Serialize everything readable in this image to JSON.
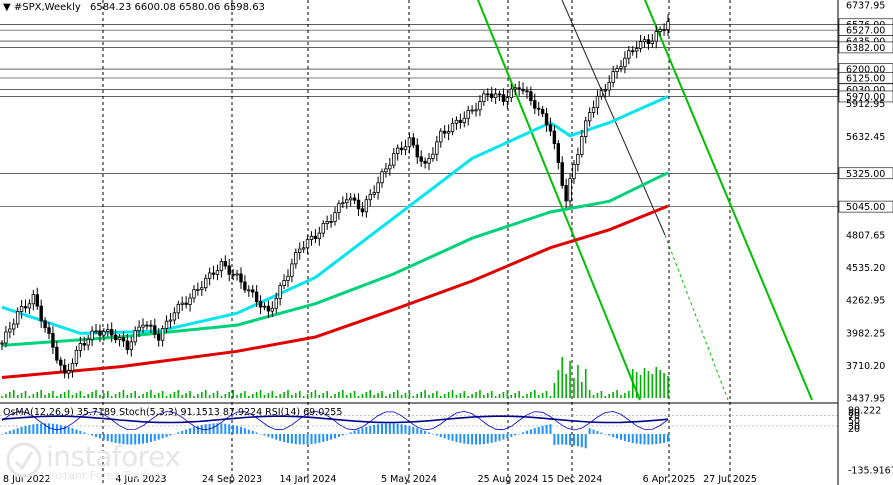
{
  "header": {
    "symbol": "#SPX,Weekly",
    "ohlc": "6584.23 6600.08 6580.06 6598.63"
  },
  "indicator_header": "OsMA(12,26,9) 35.7189  Stoch(5,3,3) 91.1513 87.9224  RSI(14) 69.0255",
  "logo": {
    "name": "instaforex",
    "tagline": "Instant Forex Trading"
  },
  "colors": {
    "candle": "#000000",
    "ma_fast": "#00e5ee",
    "ma_mid": "#00d27a",
    "ma_slow": "#e00000",
    "channel": "#00c000",
    "channel_dark": "#202020",
    "hline": "#000000",
    "osma": "#1e90ff",
    "stoch_main": "#0000cc",
    "stoch_sig": "#cc0000",
    "rsi": "#00008b",
    "grid_v": "#000000"
  },
  "chart_data": {
    "type": "candlestick",
    "instrument": "#SPX",
    "timeframe": "Weekly",
    "y_ticks": [
      6737.95,
      6576.0,
      6527.0,
      6435.0,
      6382.0,
      6200.0,
      6125.0,
      6030.0,
      5970.0,
      5912.95,
      5632.45,
      5325.0,
      5045.0,
      4807.65,
      4535.2,
      4262.95,
      3982.25,
      3710.2,
      3437.95
    ],
    "ylim": [
      3437.95,
      6737.95
    ],
    "x_ticks": [
      "8 Jul 2022",
      "4 Jun 2023",
      "24 Sep 2023",
      "14 Jan 2024",
      "5 May 2024",
      "25 Aug 2024",
      "15 Dec 2024",
      "6 Apr 2025",
      "27 Jul 2025"
    ],
    "horizontal_levels": [
      6576.0,
      6527.0,
      6435.0,
      6382.0,
      6200.0,
      6125.0,
      6030.0,
      5970.0,
      5325.0,
      5045.0
    ],
    "price_keypoints": [
      {
        "week": 0,
        "price": 3900
      },
      {
        "week": 4,
        "price": 4150
      },
      {
        "week": 8,
        "price": 4280
      },
      {
        "week": 12,
        "price": 3950
      },
      {
        "week": 16,
        "price": 3620
      },
      {
        "week": 20,
        "price": 3880
      },
      {
        "week": 24,
        "price": 4000
      },
      {
        "week": 28,
        "price": 3980
      },
      {
        "week": 32,
        "price": 3870
      },
      {
        "week": 36,
        "price": 4080
      },
      {
        "week": 40,
        "price": 3950
      },
      {
        "week": 44,
        "price": 4170
      },
      {
        "week": 48,
        "price": 4280
      },
      {
        "week": 52,
        "price": 4430
      },
      {
        "week": 56,
        "price": 4560
      },
      {
        "week": 60,
        "price": 4450
      },
      {
        "week": 64,
        "price": 4300
      },
      {
        "week": 68,
        "price": 4150
      },
      {
        "week": 72,
        "price": 4420
      },
      {
        "week": 76,
        "price": 4700
      },
      {
        "week": 80,
        "price": 4800
      },
      {
        "week": 84,
        "price": 4950
      },
      {
        "week": 88,
        "price": 5130
      },
      {
        "week": 92,
        "price": 5020
      },
      {
        "week": 96,
        "price": 5250
      },
      {
        "week": 100,
        "price": 5480
      },
      {
        "week": 104,
        "price": 5600
      },
      {
        "week": 108,
        "price": 5380
      },
      {
        "week": 112,
        "price": 5650
      },
      {
        "week": 116,
        "price": 5750
      },
      {
        "week": 120,
        "price": 5850
      },
      {
        "week": 124,
        "price": 6000
      },
      {
        "week": 128,
        "price": 5950
      },
      {
        "week": 132,
        "price": 6060
      },
      {
        "week": 136,
        "price": 5900
      },
      {
        "week": 140,
        "price": 5700
      },
      {
        "week": 144,
        "price": 5100
      },
      {
        "week": 146,
        "price": 5400
      },
      {
        "week": 150,
        "price": 5850
      },
      {
        "week": 154,
        "price": 6050
      },
      {
        "week": 158,
        "price": 6250
      },
      {
        "week": 162,
        "price": 6400
      },
      {
        "week": 166,
        "price": 6450
      },
      {
        "week": 170,
        "price": 6598.63
      }
    ],
    "moving_averages": [
      {
        "color": "ma_fast",
        "points": [
          {
            "week": 0,
            "price": 4200
          },
          {
            "week": 20,
            "price": 3980
          },
          {
            "week": 40,
            "price": 4000
          },
          {
            "week": 60,
            "price": 4150
          },
          {
            "week": 80,
            "price": 4450
          },
          {
            "week": 100,
            "price": 4950
          },
          {
            "week": 120,
            "price": 5450
          },
          {
            "week": 140,
            "price": 5750
          },
          {
            "week": 145,
            "price": 5640
          },
          {
            "week": 155,
            "price": 5750
          },
          {
            "week": 170,
            "price": 5970
          }
        ]
      },
      {
        "color": "ma_mid",
        "points": [
          {
            "week": 0,
            "price": 3880
          },
          {
            "week": 30,
            "price": 3950
          },
          {
            "week": 60,
            "price": 4050
          },
          {
            "week": 80,
            "price": 4230
          },
          {
            "week": 100,
            "price": 4480
          },
          {
            "week": 120,
            "price": 4780
          },
          {
            "week": 140,
            "price": 5000
          },
          {
            "week": 155,
            "price": 5090
          },
          {
            "week": 170,
            "price": 5330
          }
        ]
      },
      {
        "color": "ma_slow",
        "points": [
          {
            "week": 0,
            "price": 3610
          },
          {
            "week": 30,
            "price": 3700
          },
          {
            "week": 60,
            "price": 3830
          },
          {
            "week": 80,
            "price": 3950
          },
          {
            "week": 100,
            "price": 4180
          },
          {
            "week": 120,
            "price": 4420
          },
          {
            "week": 140,
            "price": 4700
          },
          {
            "week": 155,
            "price": 4850
          },
          {
            "week": 170,
            "price": 5050
          }
        ]
      }
    ],
    "indicator_pane": {
      "y_ticks": [
        90.222,
        80,
        70,
        50,
        30,
        20,
        -135.9167
      ],
      "osma": 35.7189,
      "stoch_main": 91.1513,
      "stoch_signal": 87.9224,
      "rsi": 69.0255
    }
  }
}
